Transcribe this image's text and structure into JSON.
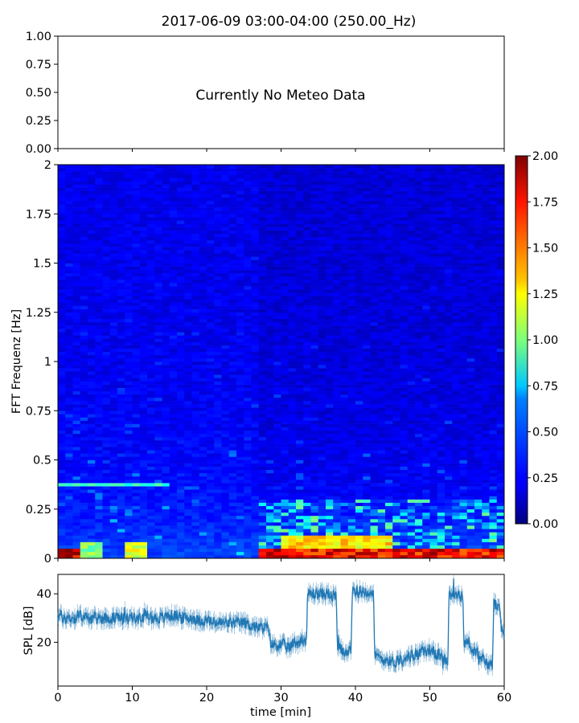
{
  "title": "2017-06-09 03:00-04:00 (250.00_Hz)",
  "colors": {
    "spl_line": "#1f77b4",
    "frame": "#000000",
    "background": "#ffffff"
  },
  "chart_data": [
    {
      "type": "line",
      "name": "meteo-panel",
      "annotation": "Currently No Meteo Data",
      "series": [],
      "ylim": [
        0,
        1
      ],
      "yticks": [
        "0.00",
        "0.25",
        "0.50",
        "0.75",
        "1.00"
      ],
      "xlim": [
        0,
        60
      ],
      "xtick_labels_visible": false
    },
    {
      "type": "heatmap",
      "name": "fft-spectrogram",
      "ylabel": "FFT Frequenz [Hz]",
      "xlim": [
        0,
        60
      ],
      "ylim": [
        0,
        2
      ],
      "yticks": [
        "0",
        "0.25",
        "0.5",
        "0.75",
        "1",
        "1.25",
        "1.5",
        "1.75",
        "2"
      ],
      "colormap": "jet",
      "colorbar": {
        "range": [
          0,
          2
        ],
        "ticks": [
          "0.00",
          "0.25",
          "0.50",
          "0.75",
          "1.00",
          "1.25",
          "1.50",
          "1.75",
          "2.00"
        ]
      },
      "features": [
        {
          "t": [
            0,
            3
          ],
          "f": [
            0,
            0.05
          ],
          "level": 2.0
        },
        {
          "t": [
            3,
            6
          ],
          "f": [
            0,
            0.08
          ],
          "level": 1.1
        },
        {
          "t": [
            9.5,
            12.5
          ],
          "f": [
            0,
            0.08
          ],
          "level": 1.3
        },
        {
          "t": [
            27.5,
            60
          ],
          "f": [
            0,
            0.05
          ],
          "level": 1.9
        },
        {
          "t": [
            30,
            45
          ],
          "f": [
            0.05,
            0.11
          ],
          "level": 1.4
        },
        {
          "t": [
            0,
            15
          ],
          "f": [
            0.36,
            0.39
          ],
          "level": 0.9
        }
      ]
    },
    {
      "type": "line",
      "name": "spl-timeseries",
      "ylabel": "SPL [dB]",
      "xlabel": "time [min]",
      "xlim": [
        0,
        60
      ],
      "ylim": [
        2,
        48
      ],
      "yticks": [
        20,
        40
      ],
      "xticks": [
        0,
        10,
        20,
        30,
        40,
        50,
        60
      ],
      "series": [
        {
          "x": [
            0,
            1,
            2,
            3,
            4,
            5,
            6,
            7,
            8,
            9,
            10,
            11,
            12,
            13,
            14,
            15,
            16,
            17,
            18,
            19,
            20,
            21,
            22,
            23,
            24,
            25,
            26,
            27,
            28,
            29,
            30,
            31,
            32,
            33,
            34,
            35,
            36,
            37,
            38,
            39,
            40,
            41,
            42,
            43,
            44,
            45,
            46,
            47,
            48,
            49,
            50,
            51,
            52,
            53,
            54,
            55,
            56,
            57,
            58,
            59,
            60
          ],
          "y": [
            31,
            30,
            30,
            31,
            30,
            30,
            30,
            30,
            30,
            30,
            30,
            30,
            31,
            30,
            30,
            31,
            31,
            30,
            30,
            29,
            29,
            28,
            28,
            28,
            28,
            28,
            27,
            26,
            26,
            19,
            19,
            18,
            20,
            21,
            40,
            40,
            40,
            39,
            17,
            16,
            41,
            41,
            41,
            14,
            13,
            12,
            13,
            14,
            15,
            16,
            17,
            15,
            13,
            40,
            39,
            20,
            16,
            13,
            11,
            36,
            25
          ]
        }
      ]
    }
  ]
}
